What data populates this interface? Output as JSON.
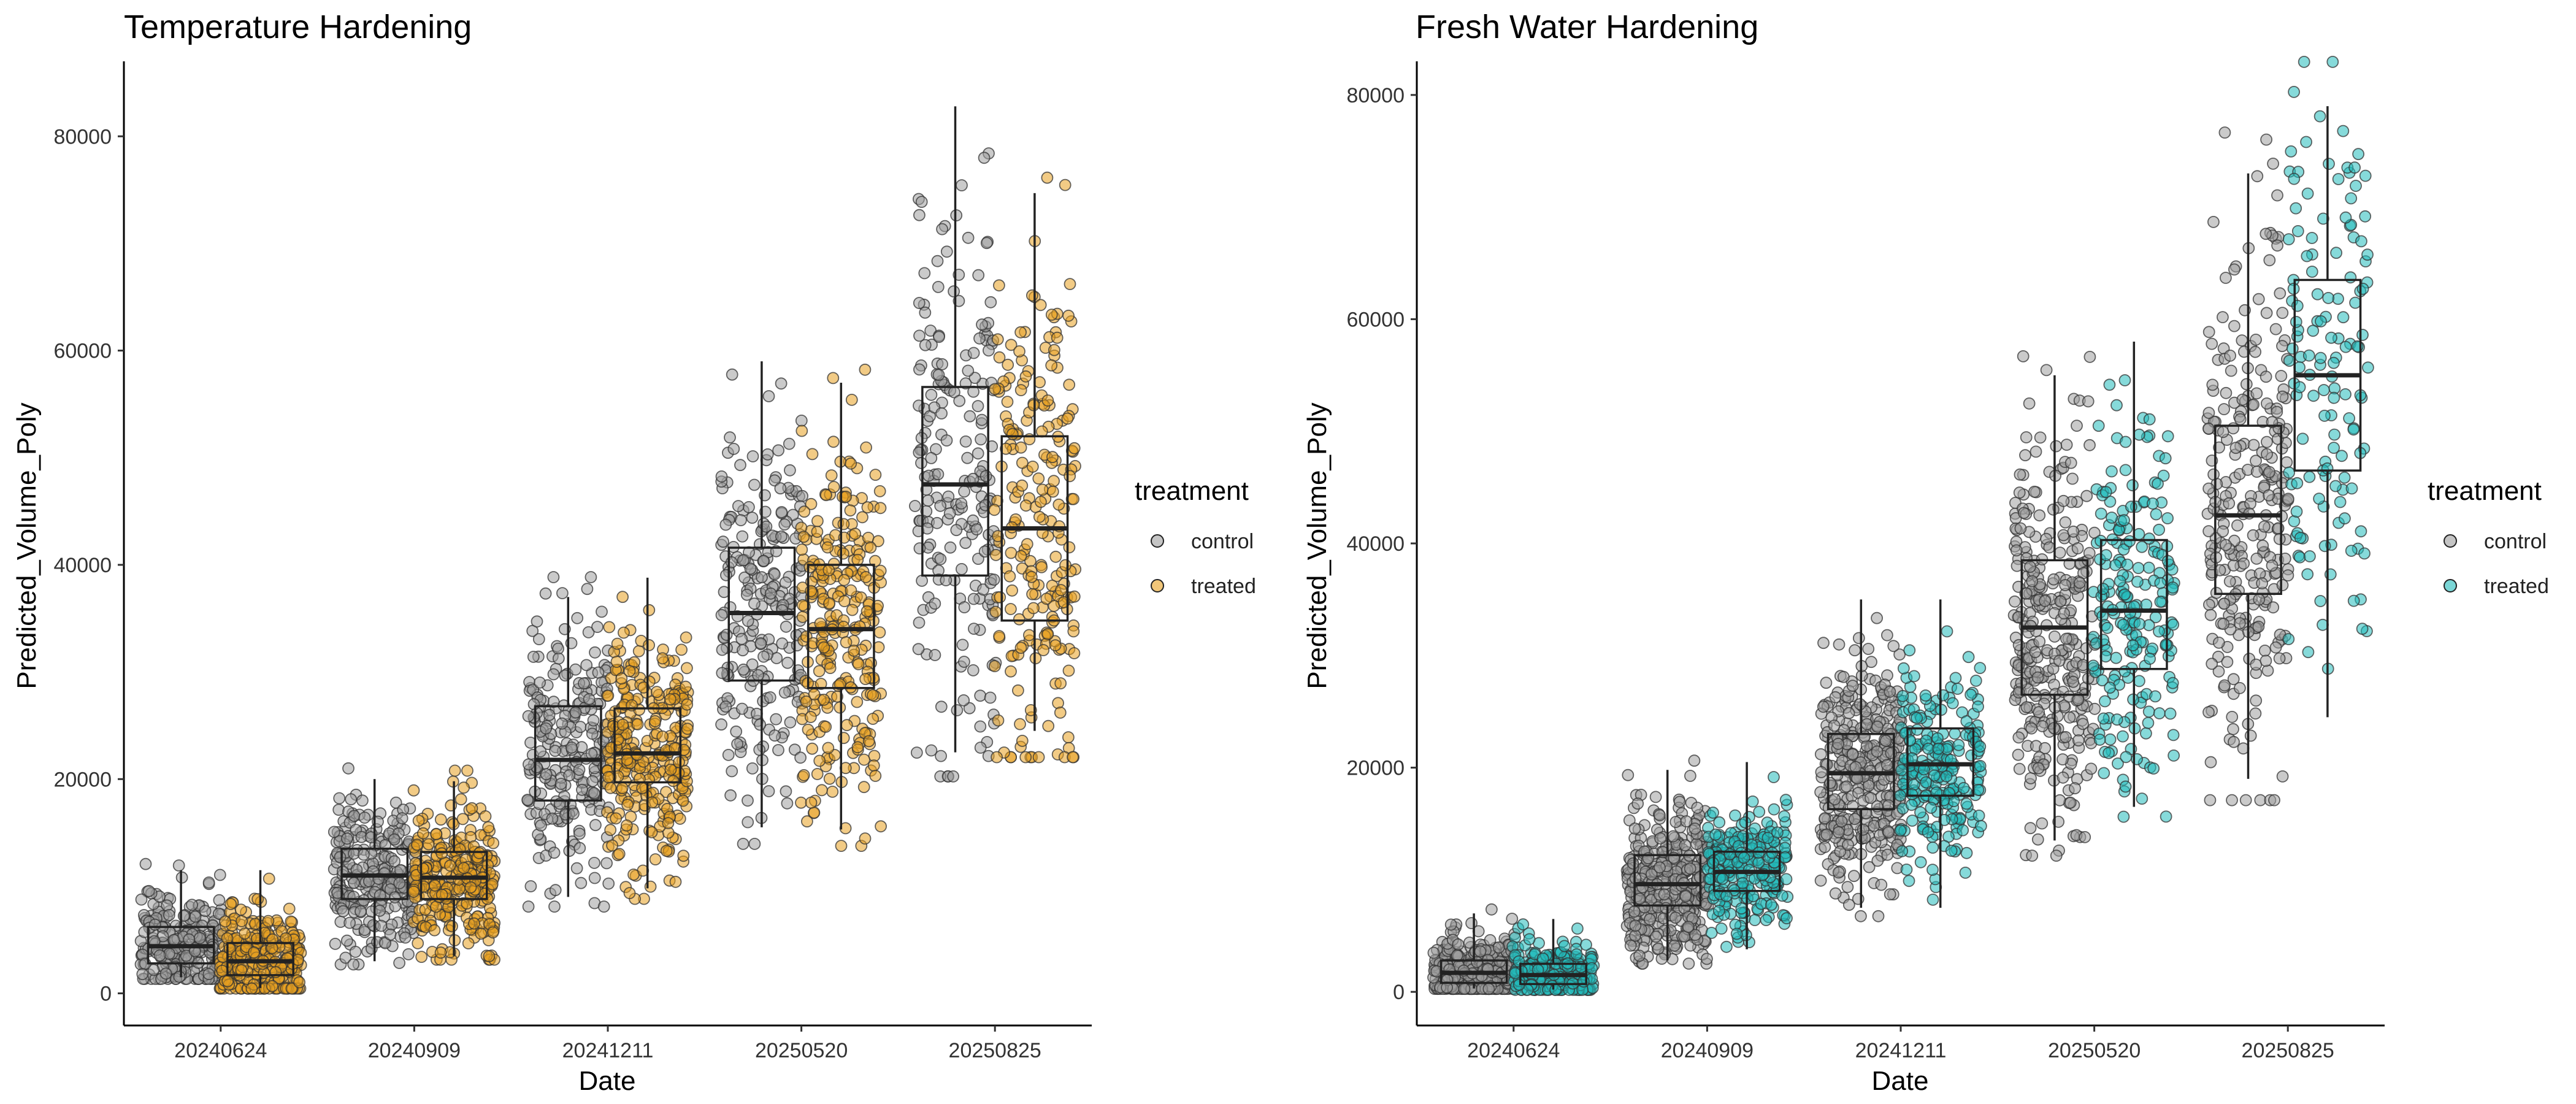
{
  "colors": {
    "control": "#9e9e9e",
    "treated_temperature": "#e8a020",
    "treated_freshwater": "#22bbbb",
    "box_stroke": "#222222",
    "axis": "#000000"
  },
  "chart_data": [
    {
      "type": "box-jitter",
      "title": "Temperature Hardening",
      "xlabel": "Date",
      "ylabel": "Predicted_Volume_Poly",
      "categories": [
        "20240624",
        "20240909",
        "20241211",
        "20250520",
        "20250825"
      ],
      "ylim": [
        -3000,
        87000
      ],
      "yticks": [
        0,
        20000,
        40000,
        60000,
        80000
      ],
      "grid": false,
      "legend": {
        "title": "treatment",
        "position": "right",
        "entries": [
          "control",
          "treated"
        ]
      },
      "series": [
        {
          "name": "control",
          "color": "#9e9e9e",
          "boxes": [
            {
              "min": 1500,
              "q1": 2800,
              "median": 4400,
              "q3": 6200,
              "max": 11500,
              "n": 260
            },
            {
              "min": 3000,
              "q1": 8800,
              "median": 11000,
              "q3": 13500,
              "max": 20000,
              "n": 260
            },
            {
              "min": 9000,
              "q1": 18000,
              "median": 21800,
              "q3": 26800,
              "max": 37000,
              "n": 240
            },
            {
              "min": 15500,
              "q1": 29200,
              "median": 35500,
              "q3": 41600,
              "max": 59000,
              "n": 230
            },
            {
              "min": 22500,
              "q1": 39000,
              "median": 47500,
              "q3": 56600,
              "max": 82800,
              "n": 210
            }
          ]
        },
        {
          "name": "treated",
          "color": "#e8a020",
          "boxes": [
            {
              "min": 500,
              "q1": 1700,
              "median": 3000,
              "q3": 4700,
              "max": 11500,
              "n": 300
            },
            {
              "min": 3500,
              "q1": 8800,
              "median": 10800,
              "q3": 13200,
              "max": 19800,
              "n": 300
            },
            {
              "min": 9800,
              "q1": 19700,
              "median": 22400,
              "q3": 26600,
              "max": 38800,
              "n": 300
            },
            {
              "min": 15300,
              "q1": 28500,
              "median": 34000,
              "q3": 40000,
              "max": 57000,
              "n": 270
            },
            {
              "min": 24500,
              "q1": 34800,
              "median": 43400,
              "q3": 52000,
              "max": 74700,
              "n": 230
            }
          ]
        }
      ]
    },
    {
      "type": "box-jitter",
      "title": "Fresh Water Hardening",
      "xlabel": "Date",
      "ylabel": "Predicted_Volume_Poly",
      "categories": [
        "20240624",
        "20240909",
        "20241211",
        "20250520",
        "20250825"
      ],
      "ylim": [
        -3000,
        83000
      ],
      "yticks": [
        0,
        20000,
        40000,
        60000,
        80000
      ],
      "grid": false,
      "legend": {
        "title": "treatment",
        "position": "right",
        "entries": [
          "control",
          "treated"
        ]
      },
      "series": [
        {
          "name": "control",
          "color": "#9e9e9e",
          "boxes": [
            {
              "min": 300,
              "q1": 800,
              "median": 1700,
              "q3": 2800,
              "max": 7000,
              "n": 340
            },
            {
              "min": 2800,
              "q1": 7700,
              "median": 9600,
              "q3": 12200,
              "max": 19800,
              "n": 380
            },
            {
              "min": 7500,
              "q1": 16300,
              "median": 19500,
              "q3": 23000,
              "max": 35000,
              "n": 360
            },
            {
              "min": 13500,
              "q1": 26500,
              "median": 32500,
              "q3": 38500,
              "max": 55000,
              "n": 330
            },
            {
              "min": 19000,
              "q1": 35500,
              "median": 42500,
              "q3": 50500,
              "max": 73000,
              "n": 280
            }
          ]
        },
        {
          "name": "treated",
          "color": "#22bbbb",
          "boxes": [
            {
              "min": 200,
              "q1": 700,
              "median": 1500,
              "q3": 2500,
              "max": 6500,
              "n": 240
            },
            {
              "min": 3800,
              "q1": 9000,
              "median": 10700,
              "q3": 12500,
              "max": 20500,
              "n": 240
            },
            {
              "min": 7500,
              "q1": 17500,
              "median": 20300,
              "q3": 23500,
              "max": 35000,
              "n": 230
            },
            {
              "min": 16500,
              "q1": 28800,
              "median": 34000,
              "q3": 40300,
              "max": 58000,
              "n": 210
            },
            {
              "min": 24500,
              "q1": 46500,
              "median": 55000,
              "q3": 63500,
              "max": 79000,
              "n": 140
            }
          ]
        }
      ]
    }
  ]
}
